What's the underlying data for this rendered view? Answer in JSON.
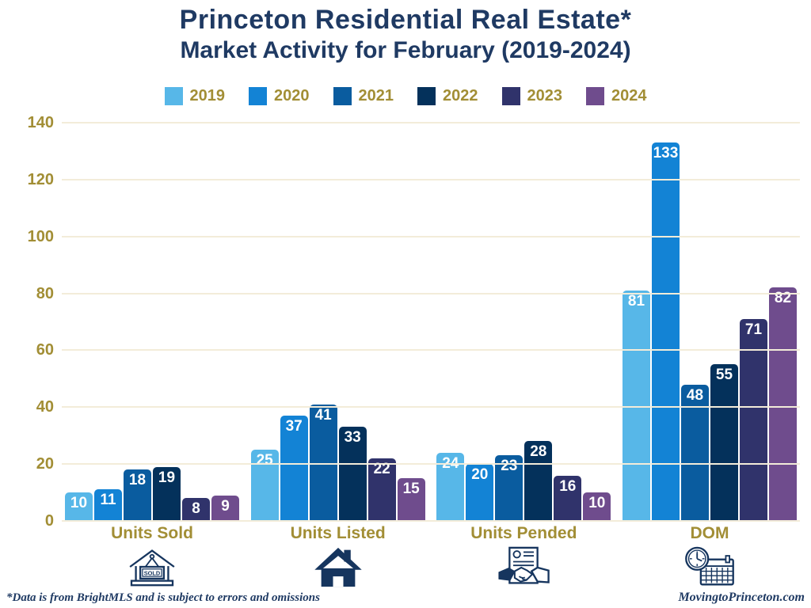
{
  "title": {
    "line1": "Princeton Residential Real Estate*",
    "line2": "Market Activity for February (2019-2024)"
  },
  "colors": {
    "series": [
      "#57B7E8",
      "#1383D5",
      "#0A5C9F",
      "#04315B",
      "#30336B",
      "#6F4C8D"
    ],
    "title_navy": "#1F3A63",
    "gold": "#A28E35",
    "gridline": "#F3ECD9",
    "icon_navy": "#16355E",
    "value_label": "#FFFFFF"
  },
  "chart_data": {
    "type": "bar",
    "title": "Princeton Residential Real Estate* Market Activity for February (2019-2024)",
    "categories": [
      "Units Sold",
      "Units Listed",
      "Units Pended",
      "DOM"
    ],
    "series": [
      {
        "name": "2019",
        "values": [
          10,
          25,
          24,
          81
        ]
      },
      {
        "name": "2020",
        "values": [
          11,
          37,
          20,
          133
        ]
      },
      {
        "name": "2021",
        "values": [
          18,
          41,
          23,
          48
        ]
      },
      {
        "name": "2022",
        "values": [
          19,
          33,
          28,
          55
        ]
      },
      {
        "name": "2023",
        "values": [
          8,
          22,
          16,
          71
        ]
      },
      {
        "name": "2024",
        "values": [
          9,
          15,
          10,
          82
        ]
      }
    ],
    "xlabel": "",
    "ylabel": "",
    "ylim": [
      0,
      140
    ],
    "yticks": [
      0,
      20,
      40,
      60,
      80,
      100,
      120,
      140
    ],
    "grid": true,
    "legend_position": "top",
    "data_labels": true
  },
  "category_icons": [
    "sold-sign-icon",
    "house-icon",
    "handshake-icon",
    "clock-calendar-icon"
  ],
  "footer": {
    "left": "*Data is from BrightMLS and is subject to errors and omissions",
    "right": "MovingtoPrinceton.com"
  }
}
